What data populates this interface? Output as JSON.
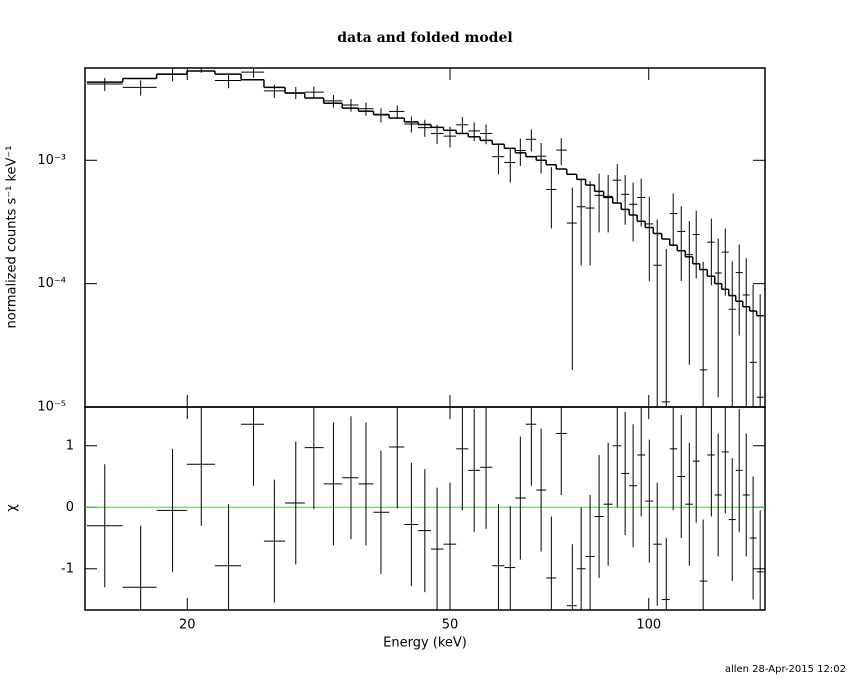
{
  "chart_data": [
    {
      "type": "errorbar",
      "title": "data and folded model",
      "ylabel": "normalized counts s⁻¹ keV⁻¹",
      "xscale": "log",
      "yscale": "log",
      "xlim": [
        14,
        150
      ],
      "ylim": [
        1e-05,
        0.0056
      ],
      "xticks": [
        20,
        50,
        100
      ],
      "yticks": [
        {
          "value": 1e-05,
          "label": "10⁻⁵"
        },
        {
          "value": 0.0001,
          "label": "10⁻⁴"
        },
        {
          "value": 0.001,
          "label": "10⁻³"
        }
      ],
      "x": [
        15.0,
        17.0,
        19.0,
        21.0,
        23.1,
        25.2,
        27.1,
        29.2,
        31.1,
        33.3,
        35.4,
        37.3,
        39.3,
        41.6,
        43.7,
        45.8,
        47.8,
        50.0,
        52.2,
        54.4,
        56.7,
        59.2,
        61.7,
        63.9,
        66.4,
        68.7,
        71.2,
        73.7,
        76.6,
        79.0,
        81.5,
        84.1,
        86.8,
        89.6,
        92.1,
        94.7,
        97.4,
        100.2,
        103.0,
        106.3,
        108.9,
        112.0,
        115.2,
        118.0,
        120.9,
        124.4,
        127.4,
        130.6,
        133.8,
        137.1,
        140.5,
        143.9,
        147.5
      ],
      "series": [
        {
          "kind": "data",
          "color": "#000000",
          "values": [
            0.00415,
            0.0039,
            0.00497,
            0.00572,
            0.00443,
            0.00518,
            0.00365,
            0.00353,
            0.00357,
            0.00303,
            0.00281,
            0.00262,
            0.00233,
            0.00249,
            0.00197,
            0.00184,
            0.00165,
            0.00157,
            0.00194,
            0.00173,
            0.00165,
            0.00107,
            0.00096,
            0.0012,
            0.00148,
            0.00108,
            0.00058,
            0.00121,
            0.00031,
            0.00042,
            0.00041,
            0.00052,
            0.00051,
            0.00069,
            0.00053,
            0.00044,
            0.0005,
            0.000305,
            0.000141,
            1.1e-05,
            0.00037,
            0.000265,
            0.000172,
            0.00025,
            2e-05,
            0.000217,
            0.000122,
            0.00018,
            6.2e-05,
            0.000123,
            8.1e-05,
            2.3e-05,
            1.2e-05
          ],
          "errors": [
            0.0005,
            0.00055,
            0.0006,
            0.0006,
            0.0006,
            0.0005,
            0.00045,
            0.0004,
            0.00038,
            0.00035,
            0.00033,
            0.00032,
            0.00031,
            0.0003,
            0.00029,
            0.00029,
            0.00029,
            0.0003,
            0.0003,
            0.0003,
            0.0003,
            0.0003,
            0.0003,
            0.0003,
            0.0003,
            0.0003,
            0.0003,
            0.0003,
            0.00029,
            0.00028,
            0.00027,
            0.00026,
            0.00025,
            0.00024,
            0.00023,
            0.00022,
            0.00021,
            0.0002,
            0.00019,
            0.00018,
            0.00017,
            0.00016,
            0.00015,
            0.00014,
            0.00013,
            0.00012,
            0.00011,
            0.0001,
            9e-05,
            8.5e-05,
            8e-05,
            7.5e-05,
            7e-05
          ]
        },
        {
          "kind": "model",
          "color": "#000000",
          "values": [
            0.0043,
            0.0046,
            0.005,
            0.0053,
            0.005,
            0.0045,
            0.0039,
            0.0035,
            0.0032,
            0.0029,
            0.00265,
            0.0025,
            0.00235,
            0.0022,
            0.00205,
            0.00195,
            0.00185,
            0.00175,
            0.00165,
            0.00155,
            0.00145,
            0.00135,
            0.00125,
            0.00115,
            0.00107,
            0.001,
            0.00092,
            0.00085,
            0.00077,
            0.0007,
            0.00063,
            0.00056,
            0.0005,
            0.00045,
            0.0004,
            0.00036,
            0.00032,
            0.000285,
            0.000255,
            0.00023,
            0.000205,
            0.000185,
            0.000165,
            0.000145,
            0.00013,
            0.000115,
            0.0001,
            9e-05,
            8e-05,
            7.2e-05,
            6.5e-05,
            6e-05,
            5.5e-05
          ]
        }
      ]
    },
    {
      "type": "errorbar",
      "ylabel": "χ",
      "xlabel": "Energy (keV)",
      "xscale": "log",
      "yscale": "linear",
      "xlim": [
        14,
        150
      ],
      "ylim": [
        -1.67,
        1.63
      ],
      "xticks": [
        20,
        50,
        100
      ],
      "yticks": [
        -1,
        0,
        1
      ],
      "zero_line_color": "#00ff00",
      "series": [
        {
          "kind": "data",
          "color": "#000000",
          "values": [
            -0.3,
            -1.3,
            -0.05,
            0.7,
            -0.95,
            1.35,
            -0.55,
            0.07,
            0.97,
            0.38,
            0.48,
            0.38,
            -0.08,
            0.98,
            -0.28,
            -0.38,
            -0.68,
            -0.6,
            0.95,
            0.6,
            0.65,
            -0.95,
            -0.98,
            0.15,
            1.35,
            0.28,
            -1.15,
            1.2,
            -1.6,
            -1.0,
            -0.8,
            -0.15,
            0.05,
            1.0,
            0.55,
            0.35,
            0.85,
            0.1,
            -0.6,
            -1.5,
            0.95,
            0.5,
            0.05,
            0.75,
            -1.2,
            0.85,
            0.2,
            0.9,
            -0.2,
            0.6,
            0.2,
            -0.5,
            -1.05
          ],
          "errors": [
            1,
            1,
            1,
            1,
            1,
            1,
            1,
            1,
            1,
            1,
            1,
            1,
            1,
            1,
            1,
            1,
            1,
            1,
            1,
            1,
            1,
            1,
            1,
            1,
            1,
            1,
            1,
            1,
            1,
            1,
            1,
            1,
            1,
            1,
            1,
            1,
            1,
            1,
            1,
            1,
            1,
            1,
            1,
            1,
            1,
            1,
            1,
            1,
            1,
            1,
            1,
            1,
            1
          ]
        }
      ]
    }
  ],
  "footer": "allen 28-Apr-2015 12:02"
}
